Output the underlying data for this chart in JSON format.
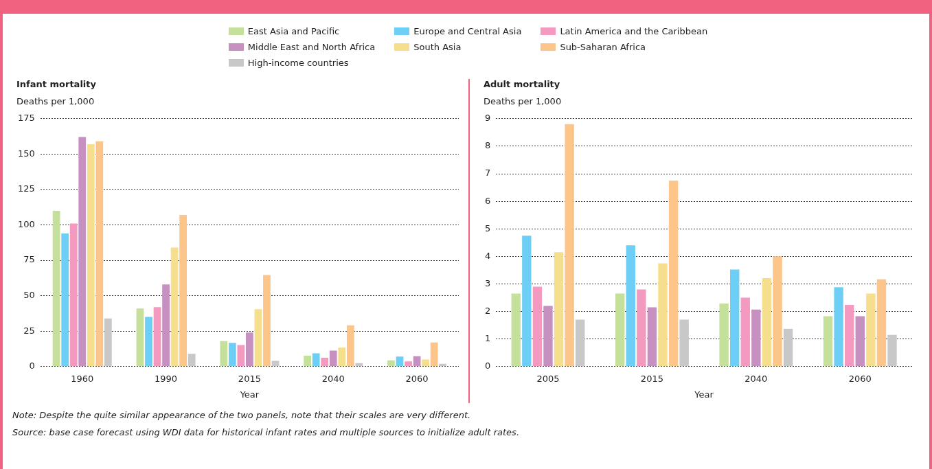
{
  "chart_data": [
    {
      "type": "bar",
      "title": "Infant mortality",
      "ylabel": "Deaths per 1,000",
      "xlabel": "Year",
      "categories": [
        "1960",
        "1990",
        "2015",
        "2040",
        "2060"
      ],
      "series": [
        {
          "name": "East Asia and Pacific",
          "color": "#c5e09b",
          "values": [
            110,
            41,
            18,
            7.7,
            4.4
          ]
        },
        {
          "name": "Europe and Central Asia",
          "color": "#6dcff6",
          "values": [
            94,
            35,
            16.7,
            9.3,
            7
          ]
        },
        {
          "name": "Latin America and the Caribbean",
          "color": "#f49ac1",
          "values": [
            101,
            42,
            15.2,
            6.2,
            3.6
          ]
        },
        {
          "name": "Middle East and North Africa",
          "color": "#c690c0",
          "values": [
            162,
            58,
            24,
            11.3,
            7.3
          ]
        },
        {
          "name": "South Asia",
          "color": "#f5de8c",
          "values": [
            157,
            84,
            40.5,
            13.4,
            5
          ]
        },
        {
          "name": "Sub-Saharan Africa",
          "color": "#fdc589",
          "values": [
            159,
            107,
            64.6,
            29.1,
            17
          ]
        },
        {
          "name": "High-income countries",
          "color": "#c8c8c8",
          "values": [
            34,
            9,
            4,
            2.5,
            2
          ]
        }
      ],
      "ylim": [
        0,
        175
      ],
      "yticks": [
        0,
        25,
        50,
        75,
        100,
        125,
        150,
        175
      ],
      "grid": "y",
      "legend": "top",
      "annotations": [
        "Note: Despite the quite similar appearance of the two panels, note that their scales are very different.",
        "Source: base case forecast using WDI data for historical infant rates and multiple sources to initialize adult rates."
      ]
    },
    {
      "type": "bar",
      "title": "Adult mortality",
      "ylabel": "Deaths per 1,000",
      "xlabel": "Year",
      "categories": [
        "2005",
        "2015",
        "2040",
        "2060"
      ],
      "series": [
        {
          "color": "#c5e09b",
          "values": [
            2.65,
            2.65,
            2.29,
            1.83
          ]
        },
        {
          "color": "#6dcff6",
          "values": [
            4.75,
            4.4,
            3.52,
            2.88
          ]
        },
        {
          "color": "#f49ac1",
          "values": [
            2.9,
            2.8,
            2.5,
            2.24
          ]
        },
        {
          "color": "#c690c0",
          "values": [
            2.2,
            2.15,
            2.07,
            1.83
          ]
        },
        {
          "color": "#f5de8c",
          "values": [
            4.15,
            3.75,
            3.21,
            2.65
          ]
        },
        {
          "color": "#fdc589",
          "values": [
            8.8,
            6.75,
            4.0,
            3.17
          ]
        },
        {
          "color": "#c8c8c8",
          "values": [
            1.7,
            1.7,
            1.37,
            1.15
          ]
        }
      ],
      "ylim": [
        0,
        9
      ],
      "yticks": [
        0,
        1,
        2,
        3,
        4,
        5,
        6,
        7,
        8,
        9
      ],
      "grid": "y"
    }
  ]
}
